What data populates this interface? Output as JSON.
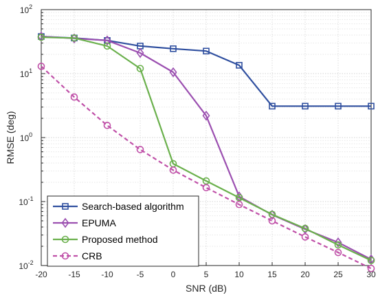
{
  "chart_data": {
    "type": "line",
    "xlabel": "SNR (dB)",
    "ylabel": "RMSE (deg)",
    "xlim": [
      -20,
      30
    ],
    "ylim": [
      0.01,
      100
    ],
    "yscale": "log",
    "grid": true,
    "legend_position": "bottom-left",
    "x": [
      -20,
      -15,
      -10,
      -5,
      0,
      5,
      10,
      15,
      20,
      25,
      30
    ],
    "x_ticks": [
      "-20",
      "-15",
      "-10",
      "-5",
      "0",
      "5",
      "10",
      "15",
      "20",
      "25",
      "30"
    ],
    "y_ticks": [
      {
        "value": 100,
        "base": "10",
        "exp": "2"
      },
      {
        "value": 10,
        "base": "10",
        "exp": "1"
      },
      {
        "value": 1,
        "base": "10",
        "exp": "0"
      },
      {
        "value": 0.1,
        "base": "10",
        "exp": "-1"
      },
      {
        "value": 0.01,
        "base": "10",
        "exp": "-2"
      }
    ],
    "series": [
      {
        "name": "Search-based algorithm",
        "color": "#2f4f9f",
        "marker": "square",
        "dashed": false,
        "values": [
          38,
          36,
          33,
          27,
          24.5,
          22.5,
          13.5,
          3.1,
          3.1,
          3.1,
          3.1
        ]
      },
      {
        "name": "EPUMA",
        "color": "#9b4fb0",
        "marker": "diamond",
        "dashed": false,
        "values": [
          38,
          35.5,
          33,
          21,
          10.5,
          2.2,
          0.12,
          0.062,
          0.037,
          0.023,
          0.0125
        ]
      },
      {
        "name": "Proposed method",
        "color": "#6ab04c",
        "marker": "circle",
        "dashed": false,
        "values": [
          37,
          36,
          27,
          12,
          0.39,
          0.21,
          0.115,
          0.063,
          0.038,
          0.021,
          0.012
        ]
      },
      {
        "name": "CRB",
        "color": "#c050a8",
        "marker": "circle",
        "dashed": true,
        "values": [
          13,
          4.3,
          1.55,
          0.65,
          0.31,
          0.165,
          0.09,
          0.05,
          0.028,
          0.016,
          0.009
        ]
      }
    ]
  }
}
